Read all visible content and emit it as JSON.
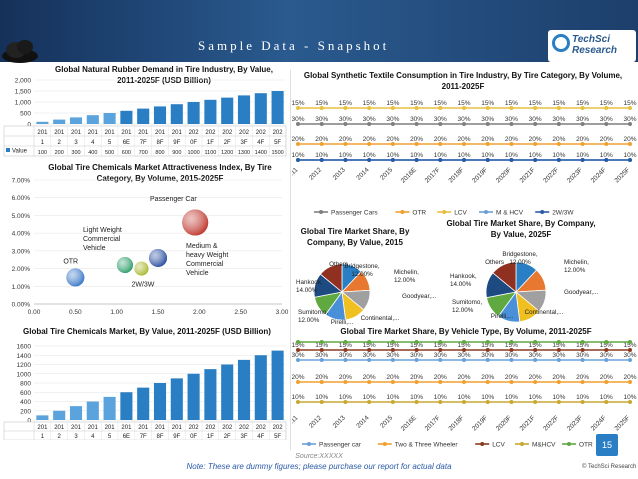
{
  "header": {
    "title": "Sample Data - Snapshot",
    "logo_line1": "TechSci",
    "logo_line2": "Research"
  },
  "footer": {
    "source": "Source:XXXXX",
    "note": "Note: These are dummy figures; please purchase our report for actual data",
    "page_number": "15",
    "copyright": "© TechSci Research"
  },
  "colors": {
    "header": "#1d3f6b",
    "bar": "#2a7fc4",
    "bar_light": "#5aa3dc",
    "accent": "#2a7fc4"
  },
  "chart_data": [
    {
      "id": "rubber-demand",
      "type": "bar",
      "title": "Global Natural Rubber Demand in Tire Industry, By Value, 2011-2025F (USD Billion)",
      "categories": [
        "2011",
        "2012",
        "2013",
        "2014",
        "2015",
        "2016E",
        "2017F",
        "2018F",
        "2019F",
        "2020F",
        "2021F",
        "2022F",
        "2023F",
        "2024F",
        "2025F"
      ],
      "tick_labels_top": [
        "201",
        "201",
        "201",
        "201",
        "201",
        "201",
        "201",
        "201",
        "201",
        "202",
        "202",
        "202",
        "202",
        "202",
        "202"
      ],
      "tick_labels_bottom": [
        "1",
        "2",
        "3",
        "4",
        "5",
        "6E",
        "7F",
        "8F",
        "9F",
        "0F",
        "1F",
        "2F",
        "3F",
        "4F",
        "5F"
      ],
      "series_label": "Value",
      "values": [
        100,
        200,
        300,
        400,
        500,
        600,
        700,
        800,
        900,
        1000,
        1100,
        1200,
        1300,
        1400,
        1500
      ],
      "table_values": [
        "100",
        "200",
        "300",
        "400",
        "500",
        "600",
        "700",
        "800",
        "900",
        "1000",
        "1100",
        "1200",
        "1300",
        "1400",
        "1500"
      ],
      "yticks": [
        "0",
        "500",
        "1,000",
        "1,500",
        "2,000"
      ],
      "ylim": [
        0,
        2000
      ]
    },
    {
      "id": "synthetic-textile",
      "type": "line",
      "title": "Global Synthetic Textile Consumption in Tire Industry, By Tire Category, By Volume, 2011-2025F",
      "x": [
        "2011",
        "2012",
        "2013",
        "2014",
        "2015",
        "2016E",
        "2017F",
        "2018F",
        "2019F",
        "2020F",
        "2021F",
        "2022F",
        "2023F",
        "2024F",
        "2025F"
      ],
      "series": [
        {
          "name": "Passenger Cars",
          "color": "#7f7f7f",
          "values": [
            30,
            30,
            30,
            30,
            30,
            30,
            30,
            30,
            30,
            30,
            30,
            30,
            30,
            30,
            30
          ],
          "labels": [
            "30%",
            "30%",
            "30%",
            "30%",
            "30%",
            "30%",
            "30%",
            "30%",
            "30%",
            "30%",
            "30%",
            "30%",
            "30%",
            "30%",
            "30%"
          ]
        },
        {
          "name": "OTR",
          "color": "#f0a030",
          "values": [
            20,
            20,
            20,
            20,
            20,
            20,
            20,
            20,
            20,
            20,
            20,
            20,
            20,
            20,
            20
          ],
          "labels": [
            "20%",
            "20%",
            "20%",
            "20%",
            "20%",
            "20%",
            "20%",
            "20%",
            "20%",
            "20%",
            "20%",
            "20%",
            "20%",
            "20%",
            "20%"
          ]
        },
        {
          "name": "LCV",
          "color": "#e8c040",
          "values": [
            15,
            15,
            15,
            15,
            15,
            15,
            15,
            15,
            15,
            15,
            15,
            15,
            15,
            15,
            15
          ],
          "labels": [
            "15%",
            "15%",
            "15%",
            "15%",
            "15%",
            "15%",
            "15%",
            "15%",
            "15%",
            "15%",
            "15%",
            "15%",
            "15%",
            "15%",
            "15%"
          ]
        },
        {
          "name": "M & HCV",
          "color": "#6aa0d8",
          "values": [
            10,
            10,
            10,
            10,
            10,
            10,
            10,
            10,
            10,
            10,
            10,
            10,
            10,
            10,
            10
          ],
          "labels": [
            "10%",
            "10%",
            "10%",
            "10%",
            "10%",
            "10%",
            "10%",
            "10%",
            "10%",
            "10%",
            "10%",
            "10%",
            "10%",
            "10%",
            "10%"
          ]
        },
        {
          "name": "2W/3W",
          "color": "#2a5aa8",
          "values": [
            25,
            25,
            25,
            25,
            25,
            25,
            25,
            25,
            25,
            25,
            25,
            25,
            25,
            25,
            25
          ],
          "labels": []
        }
      ]
    },
    {
      "id": "attractiveness",
      "type": "scatter",
      "title": "Global Tire Chemicals Market Attractiveness Index, By Tire Category, By Volume, 2015-2025F",
      "xticks": [
        "0.00",
        "0.50",
        "1.00",
        "1.50",
        "2.00",
        "2.50",
        "3.00"
      ],
      "yticks": [
        "0.00%",
        "1.00%",
        "2.00%",
        "3.00%",
        "4.00%",
        "5.00%",
        "6.00%",
        "7.00%"
      ],
      "xlim": [
        0,
        3
      ],
      "ylim": [
        0,
        7
      ],
      "points": [
        {
          "name": "OTR",
          "x": 0.5,
          "y": 1.5,
          "r": 9,
          "color": "#3a78c8"
        },
        {
          "name": "Light Weight Commercial Vehicle",
          "x": 1.1,
          "y": 2.2,
          "r": 8,
          "color": "#2e9e6a"
        },
        {
          "name": "2W/3W",
          "x": 1.3,
          "y": 2.0,
          "r": 7,
          "color": "#a8b830"
        },
        {
          "name": "Medium & heavy Weight Commercial Vehicle",
          "x": 1.5,
          "y": 2.6,
          "r": 9,
          "color": "#2a4fa0"
        },
        {
          "name": "Passenger Car",
          "x": 1.95,
          "y": 4.6,
          "r": 13,
          "color": "#c03830"
        }
      ],
      "label_lines": {
        "lcv": [
          "Light Weight",
          "Commercial",
          "Vehicle"
        ],
        "mhcv": [
          "Medium &",
          "heavy Weight",
          "Commercial",
          "Vehicle"
        ]
      }
    },
    {
      "id": "share-2015",
      "type": "pie",
      "title": "Global Tire Market Share, By Company, By Value, 2015",
      "slices": [
        {
          "name": "Bridgestone",
          "value": 12,
          "label": "Bridgestone, 12.00%",
          "color": "#2a7fc4"
        },
        {
          "name": "Michelin",
          "value": 12,
          "label": "Michelin, 12.00%",
          "color": "#e87830"
        },
        {
          "name": "Goodyear",
          "value": 12,
          "label": "Goodyear,...",
          "color": "#a0a0a0"
        },
        {
          "name": "Continental",
          "value": 12,
          "label": "Continental,...",
          "color": "#f0c020"
        },
        {
          "name": "Pirelli",
          "value": 12,
          "label": "Pirelli,...",
          "color": "#4a90d8"
        },
        {
          "name": "Sumitomo",
          "value": 12,
          "label": "Sumitomo, 12.00%",
          "color": "#60a840"
        },
        {
          "name": "Hankook",
          "value": 14,
          "label": "Hankook, 14.00%",
          "color": "#1d4a80"
        },
        {
          "name": "Others",
          "value": 14,
          "label": "Others",
          "color": "#903020"
        }
      ]
    },
    {
      "id": "share-2025",
      "type": "pie",
      "title": "Global Tire Market Share, By Company, By Value, 2025F",
      "slices": [
        {
          "name": "Bridgestone",
          "value": 12,
          "label": "Bridgestone, 12.00%",
          "color": "#2a7fc4"
        },
        {
          "name": "Michelin",
          "value": 12,
          "label": "Michelin, 12.00%",
          "color": "#e87830"
        },
        {
          "name": "Goodyear",
          "value": 12,
          "label": "Goodyear,...",
          "color": "#a0a0a0"
        },
        {
          "name": "Continental",
          "value": 12,
          "label": "Continental,...",
          "color": "#f0c020"
        },
        {
          "name": "Pirelli",
          "value": 12,
          "label": "Pirelli,...",
          "color": "#4a90d8"
        },
        {
          "name": "Sumitomo",
          "value": 12,
          "label": "Sumitomo, 12.00%",
          "color": "#60a840"
        },
        {
          "name": "Hankook",
          "value": 14,
          "label": "Hankook, 14.00%",
          "color": "#1d4a80"
        },
        {
          "name": "Others",
          "value": 14,
          "label": "Others",
          "color": "#903020"
        }
      ]
    },
    {
      "id": "chemicals-market",
      "type": "bar",
      "title": "Global Tire Chemicals Market, By Value, 2011-2025F (USD Billion)",
      "categories": [
        "2011",
        "2012",
        "2013",
        "2014",
        "2015",
        "2016E",
        "2017F",
        "2018F",
        "2019F",
        "2020F",
        "2021F",
        "2022F",
        "2023F",
        "2024F",
        "2025F"
      ],
      "tick_labels_top": [
        "201",
        "201",
        "201",
        "201",
        "201",
        "201",
        "201",
        "201",
        "201",
        "202",
        "202",
        "202",
        "202",
        "202",
        "202"
      ],
      "tick_labels_bottom": [
        "1",
        "2",
        "3",
        "4",
        "5",
        "6E",
        "7F",
        "8F",
        "9F",
        "0F",
        "1F",
        "2F",
        "3F",
        "4F",
        "5F"
      ],
      "series_label": "Value",
      "values": [
        100,
        200,
        300,
        400,
        500,
        600,
        700,
        800,
        900,
        1000,
        1100,
        1200,
        1300,
        1400,
        1500
      ],
      "table_values": [
        "100",
        "200",
        "300",
        "400",
        "500",
        "600",
        "700",
        "800",
        "900",
        "1000",
        "1100",
        "1200",
        "1300",
        "1400",
        "1500"
      ],
      "yticks": [
        "0",
        "200",
        "400",
        "600",
        "800",
        "1000",
        "1200",
        "1400",
        "1600"
      ],
      "ylim": [
        0,
        1600
      ]
    },
    {
      "id": "vehicle-type",
      "type": "line",
      "title": "Global Tire Market Share, By Vehicle Type, By Volume, 2011-2025F",
      "x": [
        "2011",
        "2012",
        "2013",
        "2014",
        "2015",
        "2016E",
        "2017F",
        "2018F",
        "2019F",
        "2020F",
        "2021F",
        "2022F",
        "2023F",
        "2024F",
        "2025F"
      ],
      "series": [
        {
          "name": "Passenger car",
          "color": "#6aa0d8",
          "values": [
            30,
            30,
            30,
            30,
            30,
            30,
            30,
            30,
            30,
            30,
            30,
            30,
            30,
            30,
            30
          ],
          "labels": [
            "30%",
            "30%",
            "30%",
            "30%",
            "30%",
            "30%",
            "30%",
            "30%",
            "30%",
            "30%",
            "30%",
            "30%",
            "30%",
            "30%",
            "30%"
          ]
        },
        {
          "name": "Two & Three Wheeler",
          "color": "#f0a030",
          "values": [
            20,
            20,
            20,
            20,
            20,
            20,
            20,
            20,
            20,
            20,
            20,
            20,
            20,
            20,
            20
          ],
          "labels": [
            "20%",
            "20%",
            "20%",
            "20%",
            "20%",
            "20%",
            "20%",
            "20%",
            "20%",
            "20%",
            "20%",
            "20%",
            "20%",
            "20%",
            "20%"
          ]
        },
        {
          "name": "LCV",
          "color": "#8a3a20",
          "values": [
            15,
            15,
            15,
            15,
            15,
            15,
            15,
            15,
            15,
            15,
            15,
            15,
            15,
            15,
            15
          ],
          "labels": [
            "15%",
            "15%",
            "15%",
            "15%",
            "15%",
            "15%",
            "15%",
            "15%",
            "15%",
            "15%",
            "15%",
            "15%",
            "15%",
            "15%",
            "15%"
          ]
        },
        {
          "name": "M&HCV",
          "color": "#c8a830",
          "values": [
            10,
            10,
            10,
            10,
            10,
            10,
            10,
            10,
            10,
            10,
            10,
            10,
            10,
            10,
            10
          ],
          "labels": [
            "10%",
            "10%",
            "10%",
            "10%",
            "10%",
            "10%",
            "10%",
            "10%",
            "10%",
            "10%",
            "10%",
            "10%",
            "10%",
            "10%",
            "10%"
          ]
        },
        {
          "name": "OTR",
          "color": "#60a840",
          "values": [
            25,
            25,
            25,
            25,
            25,
            25,
            25,
            25,
            25,
            25,
            25,
            25,
            25,
            25,
            25
          ],
          "labels": []
        }
      ]
    }
  ]
}
